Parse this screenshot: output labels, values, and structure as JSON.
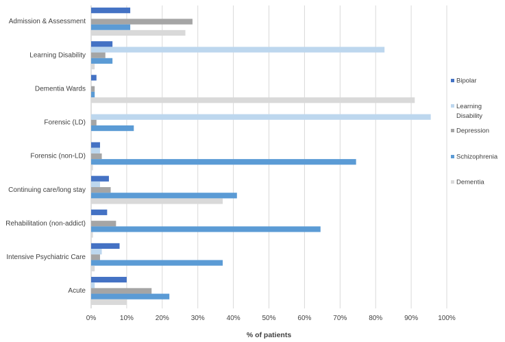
{
  "chart_data": {
    "type": "bar",
    "orientation": "horizontal",
    "title": "",
    "xlabel": "% of patients",
    "ylabel": "",
    "xlim": [
      0,
      100
    ],
    "x_ticks": [
      "0%",
      "10%",
      "20%",
      "30%",
      "40%",
      "50%",
      "60%",
      "70%",
      "80%",
      "90%",
      "100%"
    ],
    "grid": true,
    "legend_position": "right",
    "categories": [
      "Admission & Assessment",
      "Learning Disability",
      "Dementia Wards",
      "Forensic (LD)",
      "Forensic (non-LD)",
      "Continuing care/long stay",
      "Rehabilitation (non-addict)",
      "Intensive Psychiatric Care",
      "Acute"
    ],
    "series": [
      {
        "name": "Bipolar",
        "color": "#4472c4",
        "values": [
          11,
          6,
          1.5,
          0,
          2.5,
          5,
          4.5,
          8,
          10
        ]
      },
      {
        "name": "Learning Disability",
        "color": "#bdd7ee",
        "values": [
          0,
          82.5,
          0,
          95.5,
          2.5,
          2.5,
          0,
          3,
          1
        ]
      },
      {
        "name": "Depression",
        "color": "#a5a5a5",
        "values": [
          28.5,
          4,
          1,
          1.5,
          3,
          5.5,
          7,
          2.5,
          17
        ]
      },
      {
        "name": "Schizophrenia",
        "color": "#5b9bd5",
        "values": [
          11,
          6,
          1,
          12,
          74.5,
          41,
          64.5,
          37,
          22
        ]
      },
      {
        "name": "Dementia",
        "color": "#d9d9d9",
        "values": [
          26.5,
          1,
          91,
          0,
          0.5,
          37,
          0.5,
          1,
          10
        ]
      }
    ]
  }
}
